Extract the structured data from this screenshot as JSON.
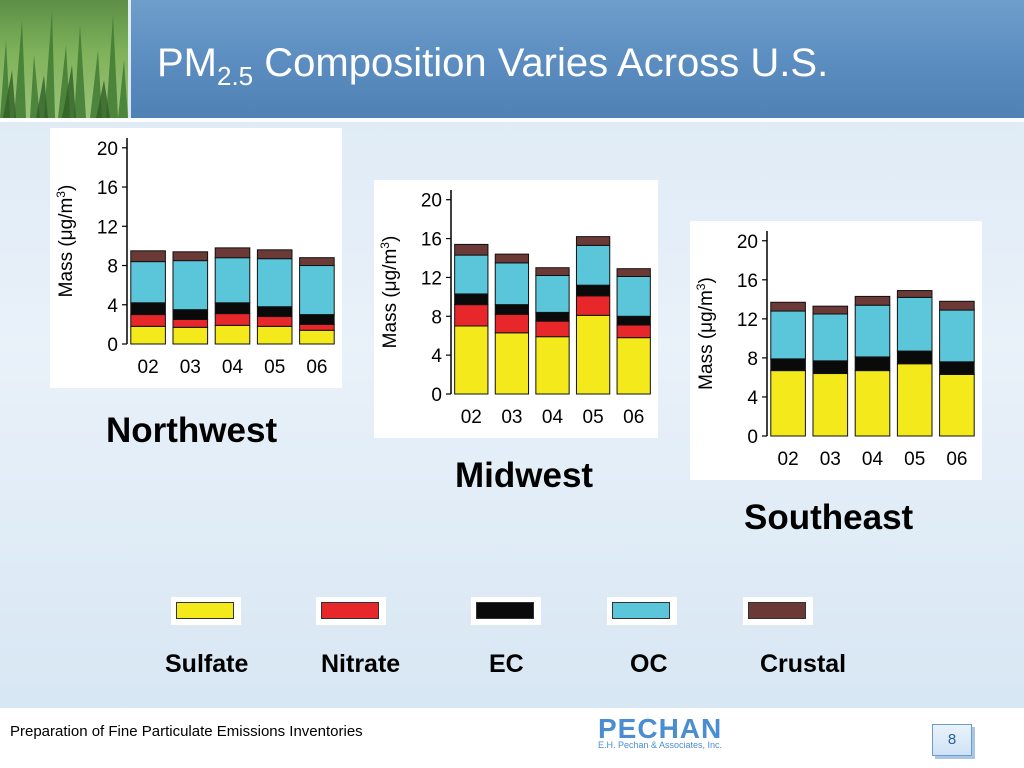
{
  "slide": {
    "title_main": "PM",
    "title_sub": "2.5",
    "title_rest": " Composition Varies Across U.S.",
    "footer": "Preparation of Fine Particulate Emissions Inventories",
    "logo_name": "PECHAN",
    "logo_tagline": "E.H. Pechan & Associates, Inc.",
    "page_number": "8"
  },
  "colors": {
    "Sulfate": "#f4e91a",
    "Nitrate": "#e8272b",
    "EC": "#0a0a0a",
    "OC": "#5bc5d9",
    "Crustal": "#6b3a36"
  },
  "legend": [
    "Sulfate",
    "Nitrate",
    "EC",
    "OC",
    "Crustal"
  ],
  "chart_data": [
    {
      "type": "bar",
      "stacked": true,
      "region": "Northwest",
      "categories": [
        "02",
        "03",
        "04",
        "05",
        "06"
      ],
      "ylabel_prefix": "Mass (",
      "ylabel_mu": "μ",
      "ylabel_unit": "g/m",
      "ylabel_exp": "3",
      "ylabel_suffix": ")",
      "ylim": [
        0,
        21
      ],
      "yticks": [
        0,
        4,
        8,
        12,
        16,
        20
      ],
      "series": [
        {
          "name": "Sulfate",
          "values": [
            1.8,
            1.7,
            1.9,
            1.8,
            1.4
          ]
        },
        {
          "name": "Nitrate",
          "values": [
            1.2,
            0.8,
            1.2,
            1.0,
            0.6
          ]
        },
        {
          "name": "EC",
          "values": [
            1.2,
            1.0,
            1.1,
            1.0,
            1.0
          ]
        },
        {
          "name": "OC",
          "values": [
            4.2,
            5.0,
            4.6,
            4.9,
            5.0
          ]
        },
        {
          "name": "Crustal",
          "values": [
            1.1,
            0.9,
            1.0,
            0.9,
            0.8
          ]
        }
      ]
    },
    {
      "type": "bar",
      "stacked": true,
      "region": "Midwest",
      "categories": [
        "02",
        "03",
        "04",
        "05",
        "06"
      ],
      "ylabel_prefix": "Mass (",
      "ylabel_mu": "μ",
      "ylabel_unit": "g/m",
      "ylabel_exp": "3",
      "ylabel_suffix": ")",
      "ylim": [
        0,
        21
      ],
      "yticks": [
        0,
        4,
        8,
        12,
        16,
        20
      ],
      "series": [
        {
          "name": "Sulfate",
          "values": [
            7.0,
            6.3,
            5.9,
            8.1,
            5.8
          ]
        },
        {
          "name": "Nitrate",
          "values": [
            2.2,
            1.9,
            1.6,
            2.0,
            1.3
          ]
        },
        {
          "name": "EC",
          "values": [
            1.1,
            1.0,
            0.9,
            1.1,
            0.9
          ]
        },
        {
          "name": "OC",
          "values": [
            4.0,
            4.3,
            3.8,
            4.1,
            4.1
          ]
        },
        {
          "name": "Crustal",
          "values": [
            1.1,
            0.9,
            0.8,
            0.9,
            0.8
          ]
        }
      ]
    },
    {
      "type": "bar",
      "stacked": true,
      "region": "Southeast",
      "categories": [
        "02",
        "03",
        "04",
        "05",
        "06"
      ],
      "ylabel_prefix": "Mass (",
      "ylabel_mu": "μ",
      "ylabel_unit": "g/m",
      "ylabel_exp": "3",
      "ylabel_suffix": ")",
      "ylim": [
        0,
        21
      ],
      "yticks": [
        0,
        4,
        8,
        12,
        16,
        20
      ],
      "series": [
        {
          "name": "Sulfate",
          "values": [
            6.7,
            6.4,
            6.7,
            7.4,
            6.3
          ]
        },
        {
          "name": "Nitrate",
          "values": [
            0.0,
            0.0,
            0.0,
            0.0,
            0.0
          ]
        },
        {
          "name": "EC",
          "values": [
            1.2,
            1.3,
            1.4,
            1.3,
            1.3
          ]
        },
        {
          "name": "OC",
          "values": [
            4.9,
            4.8,
            5.3,
            5.5,
            5.3
          ]
        },
        {
          "name": "Crustal",
          "values": [
            0.9,
            0.8,
            0.9,
            0.7,
            0.9
          ]
        }
      ]
    }
  ]
}
